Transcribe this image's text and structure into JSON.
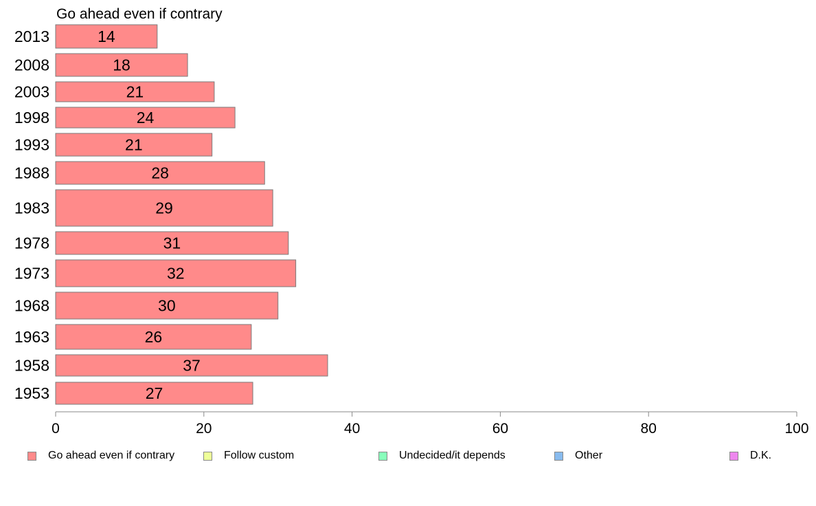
{
  "chart_data": {
    "type": "bar",
    "orientation": "horizontal",
    "title": "Go ahead even if contrary",
    "categories": [
      "2013",
      "2008",
      "2003",
      "1998",
      "1993",
      "1988",
      "1983",
      "1978",
      "1973",
      "1968",
      "1963",
      "1958",
      "1953"
    ],
    "series": [
      {
        "name": "Go ahead even if contrary",
        "values": [
          14,
          18,
          21,
          24,
          21,
          28,
          29,
          31,
          32,
          30,
          26,
          37,
          27
        ]
      }
    ],
    "data_labels": [
      "14",
      "18",
      "21",
      "24",
      "21",
      "28",
      "29",
      "31",
      "32",
      "30",
      "26",
      "37",
      "27"
    ],
    "bar_extents": [
      13.7,
      17.8,
      21.4,
      24.2,
      21.1,
      28.2,
      29.3,
      31.4,
      32.4,
      30.0,
      26.4,
      36.7,
      26.6
    ],
    "xlim": [
      0,
      100
    ],
    "xticks": [
      0,
      20,
      40,
      60,
      80,
      100
    ],
    "xtick_labels": [
      "0",
      "20",
      "40",
      "60",
      "80",
      "100"
    ],
    "grid": false,
    "legend_position": "bottom",
    "bar_color": "#ff8a8a"
  },
  "legend": [
    {
      "label": "Go ahead even if contrary",
      "color": "#ff8a8a"
    },
    {
      "label": "Follow custom",
      "color": "#eeff99"
    },
    {
      "label": "Undecided/it depends",
      "color": "#88ffbb"
    },
    {
      "label": "Other",
      "color": "#88bbee"
    },
    {
      "label": "D.K.",
      "color": "#ee88ee"
    }
  ]
}
